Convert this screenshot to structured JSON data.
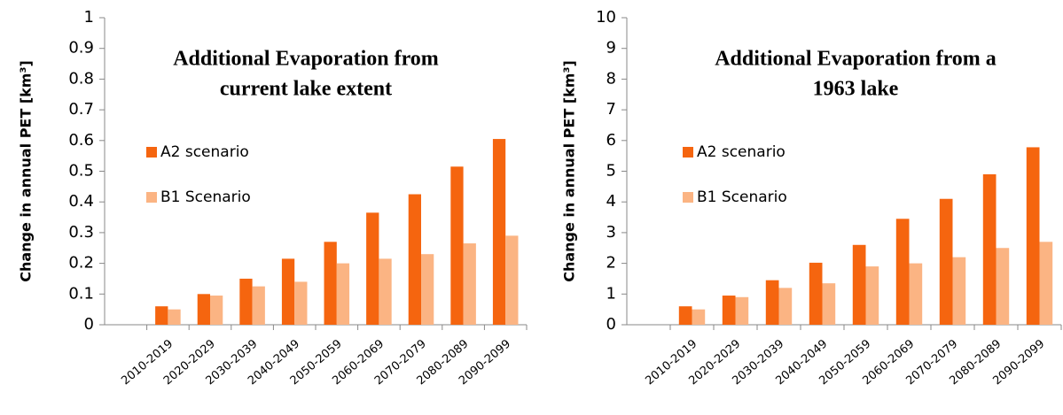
{
  "chart_data": [
    {
      "type": "bar",
      "title": [
        "Additional Evaporation from",
        "current lake extent"
      ],
      "y_label": "Change in annual PET  [km³]",
      "categories": [
        null,
        "2010-2019",
        "2020-2029",
        "2030-2039",
        "2040-2049",
        "2050-2059",
        "2060-2069",
        "2070-2079",
        "2080-2089",
        "2090-2099"
      ],
      "series": [
        {
          "name": "A2 scenario",
          "color": "#f5650f",
          "values": [
            null,
            0.06,
            0.1,
            0.15,
            0.215,
            0.27,
            0.365,
            0.425,
            0.515,
            0.605
          ]
        },
        {
          "name": "B1 Scenario",
          "color": "#fbb483",
          "values": [
            null,
            0.05,
            0.095,
            0.125,
            0.14,
            0.2,
            0.215,
            0.23,
            0.265,
            0.29
          ]
        }
      ],
      "ylim": [
        0,
        1
      ],
      "yticks": [
        0,
        0.1,
        0.2,
        0.3,
        0.4,
        0.5,
        0.6,
        0.7,
        0.8,
        0.9,
        1
      ]
    },
    {
      "type": "bar",
      "title": [
        "Additional Evaporation from a",
        "1963 lake"
      ],
      "y_label": "Change in annual PET  [km³]",
      "categories": [
        null,
        "2010-2019",
        "2020-2029",
        "2030-2039",
        "2040-2049",
        "2050-2059",
        "2060-2069",
        "2070-2079",
        "2080-2089",
        "2090-2099"
      ],
      "series": [
        {
          "name": "A2 scenario",
          "color": "#f5650f",
          "values": [
            null,
            0.6,
            0.95,
            1.45,
            2.02,
            2.6,
            3.45,
            4.1,
            4.9,
            5.78
          ]
        },
        {
          "name": "B1 Scenario",
          "color": "#fbb483",
          "values": [
            null,
            0.5,
            0.9,
            1.2,
            1.35,
            1.9,
            2.0,
            2.2,
            2.5,
            2.7
          ]
        }
      ],
      "ylim": [
        0,
        10
      ],
      "yticks": [
        0,
        1,
        2,
        3,
        4,
        5,
        6,
        7,
        8,
        9,
        10
      ]
    }
  ]
}
